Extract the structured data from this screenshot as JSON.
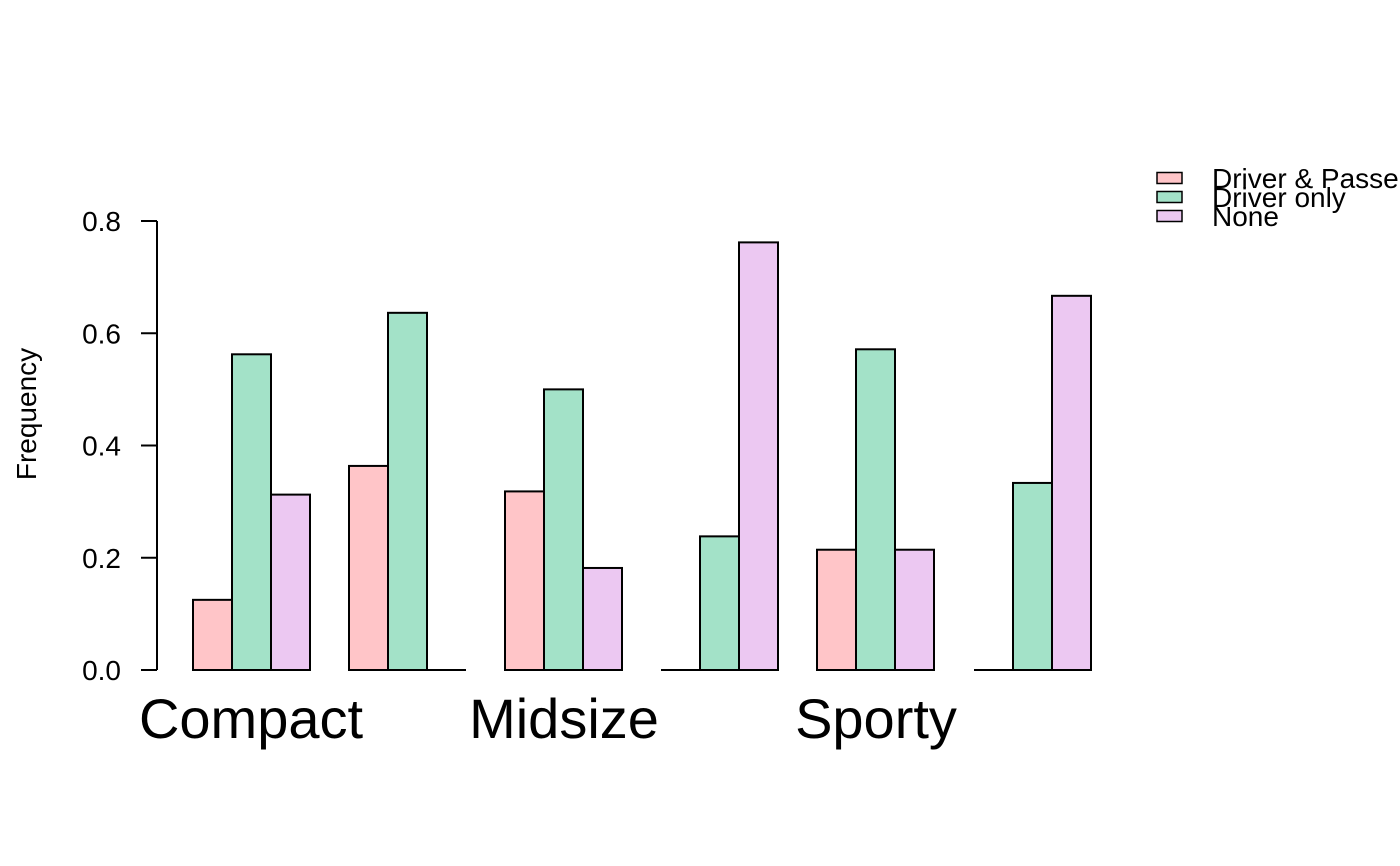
{
  "chart_data": {
    "type": "bar",
    "ylabel": "Frequency",
    "ylim": [
      0,
      0.8
    ],
    "yticks": [
      "0.0",
      "0.2",
      "0.4",
      "0.6",
      "0.8"
    ],
    "category_labels": [
      "Compact",
      "Midsize",
      "Sporty"
    ],
    "groups": [
      {
        "values": [
          0.125,
          0.5625,
          0.3125
        ]
      },
      {
        "values": [
          0.3636,
          0.6364,
          0.0
        ]
      },
      {
        "values": [
          0.3182,
          0.5,
          0.1818
        ]
      },
      {
        "values": [
          0.0,
          0.2381,
          0.7619
        ]
      },
      {
        "values": [
          0.2143,
          0.5714,
          0.2143
        ]
      },
      {
        "values": [
          0.0,
          0.3333,
          0.6667
        ]
      }
    ],
    "series": [
      {
        "name": "Driver & Passenger",
        "color": "#FFC5C8"
      },
      {
        "name": "Driver only",
        "color": "#A3E2C8"
      },
      {
        "name": "None",
        "color": "#ECC8F2"
      }
    ],
    "legend_position": "top-right",
    "grid": false
  }
}
